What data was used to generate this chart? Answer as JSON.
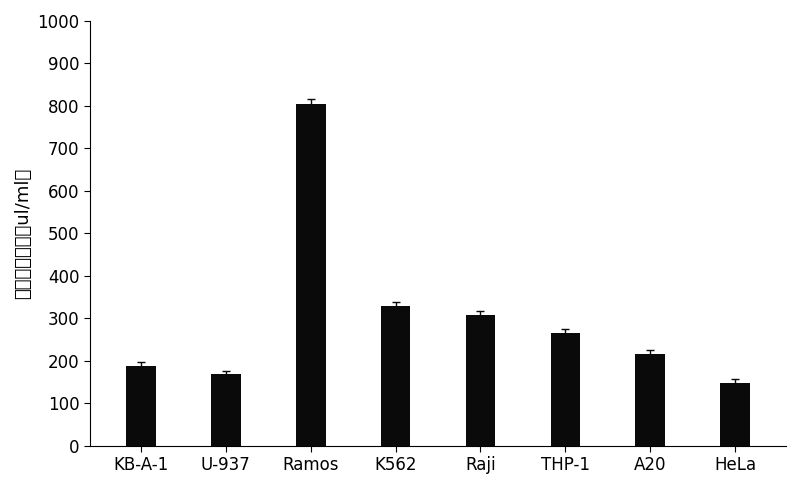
{
  "categories": [
    "KB-A-1",
    "U-937",
    "Ramos",
    "K562",
    "Raji",
    "THP-1",
    "A20",
    "HeLa"
  ],
  "values": [
    188,
    168,
    805,
    328,
    307,
    265,
    215,
    148
  ],
  "errors": [
    10,
    8,
    10,
    10,
    10,
    10,
    10,
    8
  ],
  "bar_color": "#0a0a0a",
  "error_color": "#0a0a0a",
  "ylabel": "半数抑制浓度（ul/ml）",
  "ylim": [
    0,
    1000
  ],
  "yticks": [
    0,
    100,
    200,
    300,
    400,
    500,
    600,
    700,
    800,
    900,
    1000
  ],
  "bar_width": 0.35,
  "background_color": "#ffffff",
  "ylabel_fontsize": 13,
  "tick_fontsize": 12,
  "xlabel_fontsize": 12
}
